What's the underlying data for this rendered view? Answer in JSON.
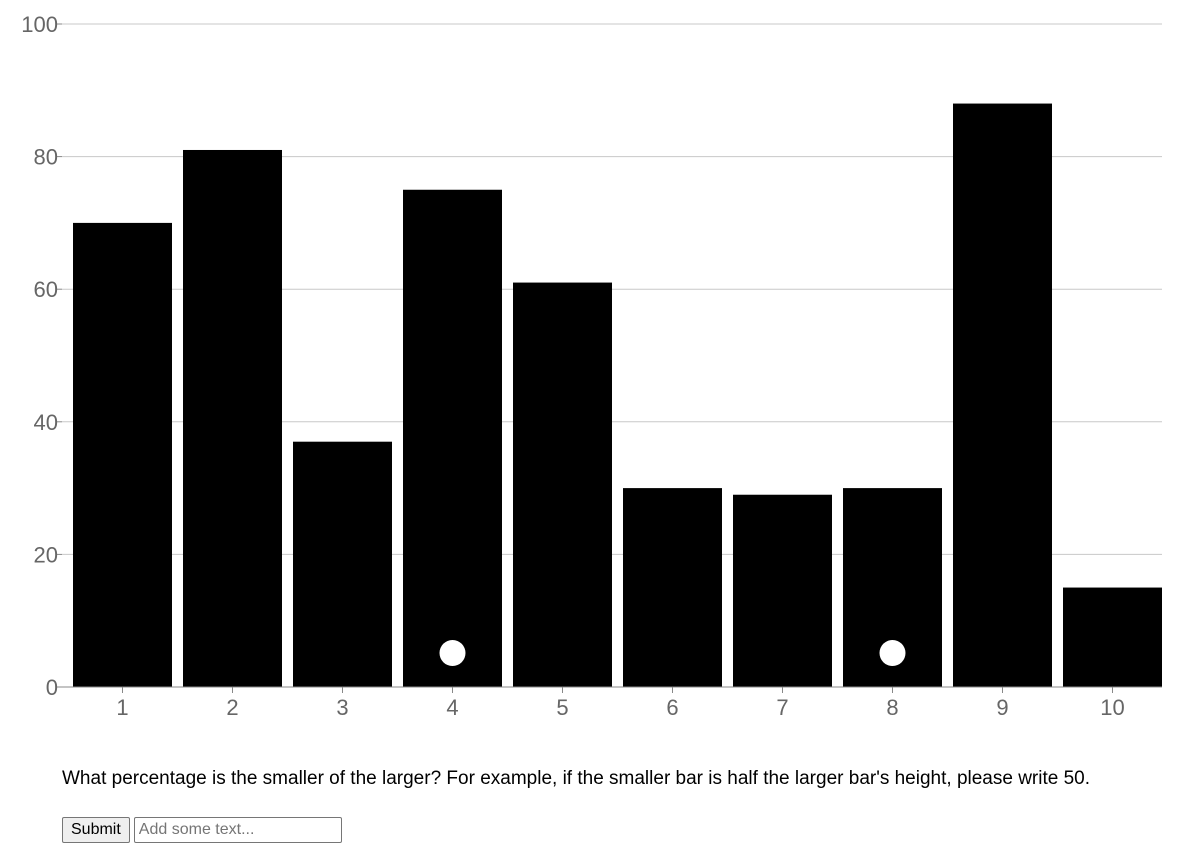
{
  "chart_data": {
    "type": "bar",
    "categories": [
      "1",
      "2",
      "3",
      "4",
      "5",
      "6",
      "7",
      "8",
      "9",
      "10"
    ],
    "values": [
      70,
      81,
      37,
      75,
      61,
      30,
      29,
      30,
      88,
      15
    ],
    "ylim": [
      0,
      100
    ],
    "yticks": [
      "0",
      "20",
      "40",
      "60",
      "80",
      "100"
    ],
    "grid": true,
    "marked_categories": [
      "4",
      "8"
    ],
    "bar_color": "#000000",
    "marker_color": "#ffffff"
  },
  "question": {
    "text": "What percentage is the smaller of the larger? For example, if the smaller bar is half the larger bar's height, please write 50."
  },
  "form": {
    "submit_label": "Submit",
    "answer_placeholder": "Add some text...",
    "answer_value": ""
  }
}
